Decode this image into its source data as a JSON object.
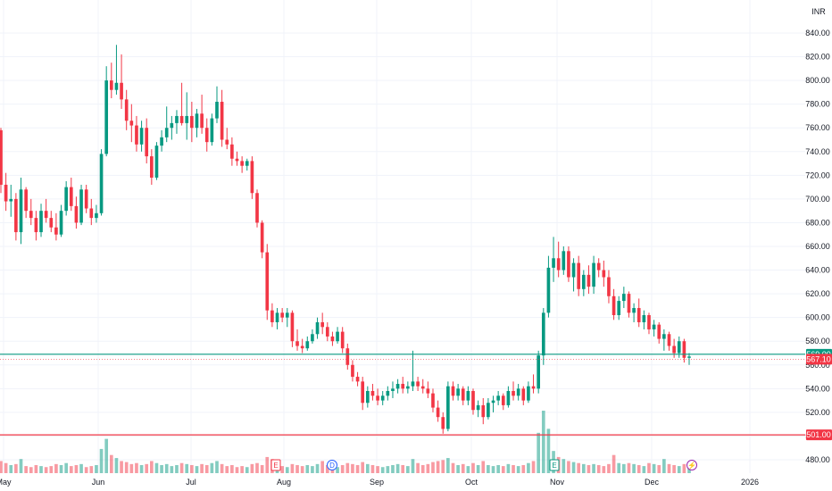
{
  "chart_data": {
    "type": "candlestick",
    "currency": "INR",
    "ylim": [
      470,
      850
    ],
    "y_ticks": [
      480,
      500,
      520,
      540,
      560,
      580,
      600,
      620,
      640,
      660,
      680,
      700,
      720,
      740,
      760,
      780,
      800,
      820,
      840
    ],
    "y_tick_labels": [
      "480.00",
      "500.00",
      "520.00",
      "540.00",
      "560.00",
      "580.00",
      "600.00",
      "620.00",
      "640.00",
      "660.00",
      "680.00",
      "700.00",
      "720.00",
      "740.00",
      "760.00",
      "780.00",
      "800.00",
      "820.00",
      "840.00"
    ],
    "x_month_labels": [
      "May",
      "Jun",
      "Jul",
      "Aug",
      "Sep",
      "Oct",
      "Nov",
      "Dec",
      "2026"
    ],
    "grid": true,
    "price_lines": [
      {
        "value": 569.0,
        "label": "569.00",
        "color": "#089981"
      },
      {
        "value": 501.0,
        "label": "501.00",
        "color": "#f23645"
      }
    ],
    "last_price": {
      "value": 567.1,
      "label": "567.10",
      "color": "#f23645"
    },
    "event_markers": [
      {
        "symbol": "E",
        "kind": "earnings",
        "color": "#f23645"
      },
      {
        "symbol": "D",
        "kind": "dividend",
        "color": "#2962ff"
      },
      {
        "symbol": "E",
        "kind": "earnings",
        "color": "#089981"
      },
      {
        "symbol": "⚡",
        "kind": "split",
        "color": "#9c27b0"
      }
    ],
    "candles": [
      {
        "o": 758,
        "h": 760,
        "l": 705,
        "c": 712,
        "v": 12
      },
      {
        "o": 712,
        "h": 722,
        "l": 690,
        "c": 698,
        "v": 10
      },
      {
        "o": 698,
        "h": 712,
        "l": 685,
        "c": 700,
        "v": 8
      },
      {
        "o": 700,
        "h": 705,
        "l": 665,
        "c": 672,
        "v": 9
      },
      {
        "o": 672,
        "h": 718,
        "l": 662,
        "c": 708,
        "v": 14
      },
      {
        "o": 708,
        "h": 710,
        "l": 684,
        "c": 690,
        "v": 7
      },
      {
        "o": 690,
        "h": 700,
        "l": 678,
        "c": 684,
        "v": 6
      },
      {
        "o": 684,
        "h": 690,
        "l": 665,
        "c": 672,
        "v": 8
      },
      {
        "o": 672,
        "h": 696,
        "l": 668,
        "c": 690,
        "v": 7
      },
      {
        "o": 690,
        "h": 700,
        "l": 680,
        "c": 684,
        "v": 6
      },
      {
        "o": 684,
        "h": 690,
        "l": 672,
        "c": 676,
        "v": 7
      },
      {
        "o": 676,
        "h": 688,
        "l": 665,
        "c": 670,
        "v": 9
      },
      {
        "o": 670,
        "h": 695,
        "l": 668,
        "c": 690,
        "v": 8
      },
      {
        "o": 690,
        "h": 715,
        "l": 686,
        "c": 710,
        "v": 10
      },
      {
        "o": 710,
        "h": 718,
        "l": 690,
        "c": 694,
        "v": 7
      },
      {
        "o": 694,
        "h": 702,
        "l": 675,
        "c": 680,
        "v": 8
      },
      {
        "o": 680,
        "h": 712,
        "l": 678,
        "c": 708,
        "v": 9
      },
      {
        "o": 708,
        "h": 712,
        "l": 688,
        "c": 692,
        "v": 6
      },
      {
        "o": 692,
        "h": 700,
        "l": 678,
        "c": 684,
        "v": 7
      },
      {
        "o": 684,
        "h": 695,
        "l": 680,
        "c": 688,
        "v": 8
      },
      {
        "o": 688,
        "h": 742,
        "l": 686,
        "c": 738,
        "v": 24
      },
      {
        "o": 738,
        "h": 812,
        "l": 736,
        "c": 800,
        "v": 34
      },
      {
        "o": 800,
        "h": 815,
        "l": 785,
        "c": 792,
        "v": 18
      },
      {
        "o": 792,
        "h": 830,
        "l": 788,
        "c": 798,
        "v": 15
      },
      {
        "o": 798,
        "h": 822,
        "l": 776,
        "c": 784,
        "v": 12
      },
      {
        "o": 784,
        "h": 792,
        "l": 758,
        "c": 766,
        "v": 11
      },
      {
        "o": 766,
        "h": 780,
        "l": 748,
        "c": 762,
        "v": 9
      },
      {
        "o": 762,
        "h": 770,
        "l": 740,
        "c": 746,
        "v": 10
      },
      {
        "o": 746,
        "h": 766,
        "l": 740,
        "c": 760,
        "v": 8
      },
      {
        "o": 760,
        "h": 768,
        "l": 730,
        "c": 736,
        "v": 9
      },
      {
        "o": 736,
        "h": 742,
        "l": 712,
        "c": 718,
        "v": 12
      },
      {
        "o": 718,
        "h": 748,
        "l": 716,
        "c": 745,
        "v": 10
      },
      {
        "o": 745,
        "h": 758,
        "l": 740,
        "c": 752,
        "v": 8
      },
      {
        "o": 752,
        "h": 778,
        "l": 748,
        "c": 760,
        "v": 9
      },
      {
        "o": 760,
        "h": 770,
        "l": 750,
        "c": 764,
        "v": 7
      },
      {
        "o": 764,
        "h": 775,
        "l": 755,
        "c": 770,
        "v": 8
      },
      {
        "o": 770,
        "h": 798,
        "l": 762,
        "c": 764,
        "v": 10
      },
      {
        "o": 764,
        "h": 790,
        "l": 750,
        "c": 770,
        "v": 9
      },
      {
        "o": 770,
        "h": 782,
        "l": 748,
        "c": 760,
        "v": 8
      },
      {
        "o": 760,
        "h": 776,
        "l": 752,
        "c": 772,
        "v": 7
      },
      {
        "o": 772,
        "h": 788,
        "l": 755,
        "c": 760,
        "v": 9
      },
      {
        "o": 760,
        "h": 768,
        "l": 740,
        "c": 748,
        "v": 8
      },
      {
        "o": 748,
        "h": 772,
        "l": 745,
        "c": 768,
        "v": 10
      },
      {
        "o": 768,
        "h": 795,
        "l": 764,
        "c": 782,
        "v": 12
      },
      {
        "o": 782,
        "h": 792,
        "l": 744,
        "c": 750,
        "v": 9
      },
      {
        "o": 750,
        "h": 760,
        "l": 742,
        "c": 746,
        "v": 7
      },
      {
        "o": 746,
        "h": 752,
        "l": 728,
        "c": 734,
        "v": 8
      },
      {
        "o": 734,
        "h": 740,
        "l": 728,
        "c": 732,
        "v": 6
      },
      {
        "o": 732,
        "h": 736,
        "l": 722,
        "c": 728,
        "v": 7
      },
      {
        "o": 728,
        "h": 734,
        "l": 724,
        "c": 732,
        "v": 6
      },
      {
        "o": 732,
        "h": 736,
        "l": 700,
        "c": 705,
        "v": 9
      },
      {
        "o": 705,
        "h": 708,
        "l": 676,
        "c": 680,
        "v": 10
      },
      {
        "o": 680,
        "h": 682,
        "l": 650,
        "c": 655,
        "v": 8
      },
      {
        "o": 655,
        "h": 662,
        "l": 598,
        "c": 606,
        "v": 16
      },
      {
        "o": 606,
        "h": 612,
        "l": 592,
        "c": 596,
        "v": 14
      },
      {
        "o": 596,
        "h": 608,
        "l": 590,
        "c": 604,
        "v": 10
      },
      {
        "o": 604,
        "h": 608,
        "l": 596,
        "c": 600,
        "v": 7
      },
      {
        "o": 600,
        "h": 608,
        "l": 592,
        "c": 604,
        "v": 6
      },
      {
        "o": 604,
        "h": 606,
        "l": 575,
        "c": 580,
        "v": 9
      },
      {
        "o": 580,
        "h": 590,
        "l": 572,
        "c": 576,
        "v": 8
      },
      {
        "o": 576,
        "h": 582,
        "l": 570,
        "c": 574,
        "v": 7
      },
      {
        "o": 574,
        "h": 584,
        "l": 572,
        "c": 580,
        "v": 8
      },
      {
        "o": 580,
        "h": 590,
        "l": 578,
        "c": 586,
        "v": 7
      },
      {
        "o": 586,
        "h": 600,
        "l": 582,
        "c": 596,
        "v": 9
      },
      {
        "o": 596,
        "h": 604,
        "l": 586,
        "c": 592,
        "v": 12
      },
      {
        "o": 592,
        "h": 596,
        "l": 580,
        "c": 584,
        "v": 8
      },
      {
        "o": 584,
        "h": 588,
        "l": 576,
        "c": 580,
        "v": 7
      },
      {
        "o": 580,
        "h": 592,
        "l": 578,
        "c": 588,
        "v": 6
      },
      {
        "o": 588,
        "h": 592,
        "l": 570,
        "c": 574,
        "v": 8
      },
      {
        "o": 574,
        "h": 578,
        "l": 556,
        "c": 560,
        "v": 10
      },
      {
        "o": 560,
        "h": 564,
        "l": 546,
        "c": 550,
        "v": 9
      },
      {
        "o": 550,
        "h": 554,
        "l": 542,
        "c": 546,
        "v": 8
      },
      {
        "o": 546,
        "h": 550,
        "l": 522,
        "c": 528,
        "v": 11
      },
      {
        "o": 528,
        "h": 542,
        "l": 524,
        "c": 538,
        "v": 9
      },
      {
        "o": 538,
        "h": 544,
        "l": 530,
        "c": 534,
        "v": 8
      },
      {
        "o": 534,
        "h": 540,
        "l": 526,
        "c": 530,
        "v": 7
      },
      {
        "o": 530,
        "h": 538,
        "l": 526,
        "c": 534,
        "v": 6
      },
      {
        "o": 534,
        "h": 542,
        "l": 530,
        "c": 538,
        "v": 7
      },
      {
        "o": 538,
        "h": 546,
        "l": 532,
        "c": 540,
        "v": 8
      },
      {
        "o": 540,
        "h": 548,
        "l": 536,
        "c": 544,
        "v": 9
      },
      {
        "o": 544,
        "h": 550,
        "l": 536,
        "c": 540,
        "v": 8
      },
      {
        "o": 540,
        "h": 546,
        "l": 536,
        "c": 542,
        "v": 7
      },
      {
        "o": 542,
        "h": 572,
        "l": 538,
        "c": 546,
        "v": 14
      },
      {
        "o": 546,
        "h": 550,
        "l": 538,
        "c": 542,
        "v": 10
      },
      {
        "o": 542,
        "h": 548,
        "l": 536,
        "c": 540,
        "v": 8
      },
      {
        "o": 540,
        "h": 546,
        "l": 532,
        "c": 536,
        "v": 9
      },
      {
        "o": 536,
        "h": 540,
        "l": 520,
        "c": 524,
        "v": 11
      },
      {
        "o": 524,
        "h": 530,
        "l": 512,
        "c": 516,
        "v": 12
      },
      {
        "o": 516,
        "h": 520,
        "l": 502,
        "c": 506,
        "v": 13
      },
      {
        "o": 506,
        "h": 546,
        "l": 504,
        "c": 542,
        "v": 15
      },
      {
        "o": 542,
        "h": 546,
        "l": 530,
        "c": 534,
        "v": 10
      },
      {
        "o": 534,
        "h": 544,
        "l": 530,
        "c": 540,
        "v": 8
      },
      {
        "o": 540,
        "h": 542,
        "l": 526,
        "c": 530,
        "v": 9
      },
      {
        "o": 530,
        "h": 542,
        "l": 526,
        "c": 538,
        "v": 7
      },
      {
        "o": 538,
        "h": 540,
        "l": 518,
        "c": 522,
        "v": 10
      },
      {
        "o": 522,
        "h": 530,
        "l": 516,
        "c": 526,
        "v": 8
      },
      {
        "o": 526,
        "h": 532,
        "l": 510,
        "c": 516,
        "v": 12
      },
      {
        "o": 516,
        "h": 532,
        "l": 514,
        "c": 528,
        "v": 8
      },
      {
        "o": 528,
        "h": 534,
        "l": 520,
        "c": 530,
        "v": 7
      },
      {
        "o": 530,
        "h": 538,
        "l": 526,
        "c": 534,
        "v": 8
      },
      {
        "o": 534,
        "h": 536,
        "l": 522,
        "c": 526,
        "v": 7
      },
      {
        "o": 526,
        "h": 542,
        "l": 524,
        "c": 538,
        "v": 9
      },
      {
        "o": 538,
        "h": 546,
        "l": 530,
        "c": 534,
        "v": 8
      },
      {
        "o": 534,
        "h": 544,
        "l": 530,
        "c": 540,
        "v": 7
      },
      {
        "o": 540,
        "h": 542,
        "l": 526,
        "c": 530,
        "v": 8
      },
      {
        "o": 530,
        "h": 546,
        "l": 528,
        "c": 542,
        "v": 10
      },
      {
        "o": 542,
        "h": 552,
        "l": 536,
        "c": 540,
        "v": 12
      },
      {
        "o": 540,
        "h": 572,
        "l": 536,
        "c": 568,
        "v": 40
      },
      {
        "o": 568,
        "h": 608,
        "l": 560,
        "c": 604,
        "v": 62
      },
      {
        "o": 604,
        "h": 652,
        "l": 600,
        "c": 642,
        "v": 44
      },
      {
        "o": 642,
        "h": 668,
        "l": 630,
        "c": 650,
        "v": 22
      },
      {
        "o": 650,
        "h": 664,
        "l": 634,
        "c": 640,
        "v": 16
      },
      {
        "o": 640,
        "h": 660,
        "l": 636,
        "c": 656,
        "v": 14
      },
      {
        "o": 656,
        "h": 660,
        "l": 630,
        "c": 634,
        "v": 12
      },
      {
        "o": 634,
        "h": 650,
        "l": 622,
        "c": 646,
        "v": 11
      },
      {
        "o": 646,
        "h": 652,
        "l": 618,
        "c": 624,
        "v": 10
      },
      {
        "o": 624,
        "h": 640,
        "l": 618,
        "c": 636,
        "v": 9
      },
      {
        "o": 636,
        "h": 644,
        "l": 620,
        "c": 626,
        "v": 8
      },
      {
        "o": 626,
        "h": 652,
        "l": 620,
        "c": 646,
        "v": 9
      },
      {
        "o": 646,
        "h": 650,
        "l": 634,
        "c": 640,
        "v": 8
      },
      {
        "o": 640,
        "h": 648,
        "l": 626,
        "c": 634,
        "v": 7
      },
      {
        "o": 634,
        "h": 640,
        "l": 612,
        "c": 618,
        "v": 9
      },
      {
        "o": 618,
        "h": 624,
        "l": 598,
        "c": 602,
        "v": 18
      },
      {
        "o": 602,
        "h": 618,
        "l": 598,
        "c": 614,
        "v": 10
      },
      {
        "o": 614,
        "h": 626,
        "l": 608,
        "c": 620,
        "v": 9
      },
      {
        "o": 620,
        "h": 622,
        "l": 600,
        "c": 604,
        "v": 10
      },
      {
        "o": 604,
        "h": 612,
        "l": 596,
        "c": 608,
        "v": 9
      },
      {
        "o": 608,
        "h": 616,
        "l": 592,
        "c": 596,
        "v": 8
      },
      {
        "o": 596,
        "h": 606,
        "l": 590,
        "c": 602,
        "v": 7
      },
      {
        "o": 602,
        "h": 604,
        "l": 586,
        "c": 590,
        "v": 10
      },
      {
        "o": 590,
        "h": 598,
        "l": 584,
        "c": 594,
        "v": 9
      },
      {
        "o": 594,
        "h": 596,
        "l": 578,
        "c": 582,
        "v": 8
      },
      {
        "o": 582,
        "h": 590,
        "l": 572,
        "c": 586,
        "v": 14
      },
      {
        "o": 586,
        "h": 588,
        "l": 572,
        "c": 576,
        "v": 9
      },
      {
        "o": 576,
        "h": 582,
        "l": 566,
        "c": 570,
        "v": 8
      },
      {
        "o": 570,
        "h": 584,
        "l": 566,
        "c": 580,
        "v": 7
      },
      {
        "o": 580,
        "h": 582,
        "l": 562,
        "c": 566,
        "v": 9
      },
      {
        "o": 566,
        "h": 570,
        "l": 560,
        "c": 567.1,
        "v": 10
      }
    ]
  }
}
